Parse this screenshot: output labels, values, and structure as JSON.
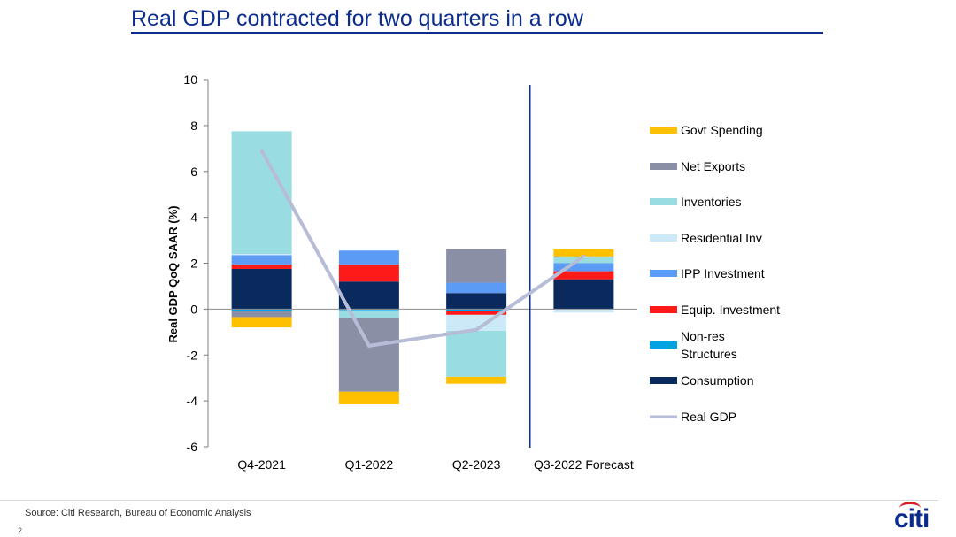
{
  "slide": {
    "title": "Real GDP contracted for two quarters in a row",
    "source": "Source: Citi Research, Bureau of Economic Analysis",
    "page_number": "2",
    "logo_text": "citi"
  },
  "chart_data": {
    "type": "bar",
    "stacked": true,
    "ylabel": "Real GDP QoQ SAAR (%)",
    "ylim": [
      -6,
      10
    ],
    "yticks": [
      10,
      8,
      6,
      4,
      2,
      0,
      -2,
      -4,
      -6
    ],
    "categories": [
      "Q4-2021",
      "Q1-2022",
      "Q2-2023",
      "Q3-2022 Forecast"
    ],
    "forecast_divider_after": "Q2-2023",
    "legend_position": "right",
    "series": [
      {
        "name": "Consumption",
        "color": "#0a2a5e",
        "values": [
          1.75,
          1.2,
          0.7,
          1.3
        ]
      },
      {
        "name": "Non-res Structures",
        "color": "#00a3e0",
        "values": [
          -0.1,
          -0.05,
          -0.1,
          0.0
        ]
      },
      {
        "name": "Equip. Investment",
        "color": "#ff1a1a",
        "values": [
          0.2,
          0.75,
          -0.15,
          0.35
        ]
      },
      {
        "name": "IPP Investment",
        "color": "#5b9bf5",
        "values": [
          0.4,
          0.6,
          0.45,
          0.35
        ]
      },
      {
        "name": "Residential Inv",
        "color": "#cbe9f7",
        "values": [
          0.05,
          0.0,
          -0.7,
          -0.15
        ]
      },
      {
        "name": "Inventories",
        "color": "#99dde3",
        "values": [
          5.35,
          -0.35,
          -2.0,
          0.25
        ]
      },
      {
        "name": "Net Exports",
        "color": "#8a8fa6",
        "values": [
          -0.25,
          -3.2,
          1.45,
          0.05
        ]
      },
      {
        "name": "Govt Spending",
        "color": "#ffc000",
        "values": [
          -0.45,
          -0.55,
          -0.3,
          0.3
        ]
      }
    ],
    "line_series": {
      "name": "Real GDP",
      "color": "#b7bdd7",
      "values": [
        6.9,
        -1.6,
        -0.9,
        2.3
      ]
    },
    "legend_order": [
      "Govt Spending",
      "Net Exports",
      "Inventories",
      "Residential Inv",
      "IPP Investment",
      "Equip. Investment",
      "Non-res Structures",
      "Consumption",
      "Real GDP"
    ]
  }
}
